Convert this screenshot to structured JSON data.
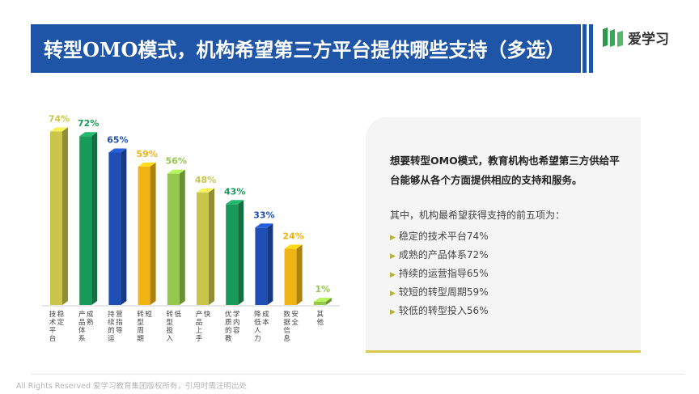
{
  "header": {
    "title": "转型OMO模式，机构希望第三方平台提供哪些支持（多选）"
  },
  "logo": {
    "name": "爱学习"
  },
  "chart_data": {
    "type": "bar",
    "categories": [
      "技术平台稳定",
      "产品体系成熟",
      "持续的运营指导",
      "转型周期短",
      "转型投入低",
      "产品上手快",
      "优质的教学内容",
      "降低人力成本",
      "数据信息安全",
      "其他"
    ],
    "values": [
      74,
      72,
      65,
      59,
      56,
      48,
      43,
      33,
      24,
      1
    ],
    "data_labels": [
      "74%",
      "72%",
      "65%",
      "59%",
      "56%",
      "48%",
      "43%",
      "33%",
      "24%",
      "1%"
    ],
    "colors": [
      "#c9c64a",
      "#1a9a5a",
      "#1f4fb5",
      "#f0b414",
      "#94c94e",
      "#c9c64a",
      "#1a9a5a",
      "#1f4fb5",
      "#f0b414",
      "#94c94e"
    ],
    "ylim": [
      0,
      100
    ]
  },
  "panel": {
    "lead": "想要转型OMO模式，教育机构也希望第三方供给平台能够从各个方面提供相应的支持和服务。",
    "intro": "其中，机构最希望获得支持的前五项为：",
    "items": [
      "稳定的技术平台74%",
      "成熟的产品体系72%",
      "持续的运营指导65%",
      "较短的转型周期59%",
      "较低的转型投入56%"
    ]
  },
  "footer": {
    "text": "All Rights Reserved 爱学习教育集团版权所有，引用时需注明出处"
  }
}
